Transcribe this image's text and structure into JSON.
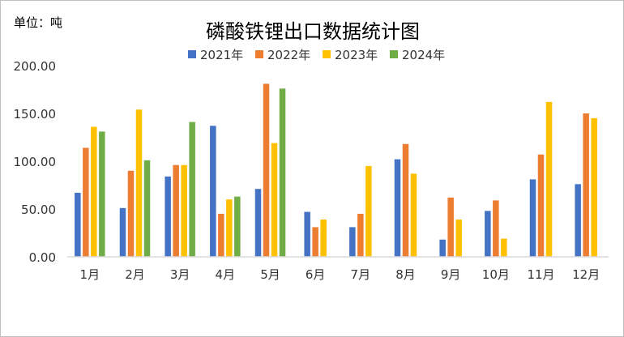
{
  "chart_data": {
    "type": "bar",
    "title": "磷酸铁锂出口数据统计图",
    "unit_label": "单位：吨",
    "categories": [
      "1月",
      "2月",
      "3月",
      "4月",
      "5月",
      "6月",
      "7月",
      "8月",
      "9月",
      "10月",
      "11月",
      "12月"
    ],
    "series": [
      {
        "name": "2021年",
        "color": "#4472C4",
        "values": [
          67,
          51,
          84,
          137,
          71,
          47,
          31,
          102,
          18,
          48,
          81,
          76
        ]
      },
      {
        "name": "2022年",
        "color": "#ED7D31",
        "values": [
          114,
          90,
          96,
          45,
          181,
          31,
          45,
          118,
          62,
          59,
          107,
          150
        ]
      },
      {
        "name": "2023年",
        "color": "#FFC000",
        "values": [
          136,
          154,
          96,
          60,
          119,
          39,
          95,
          87,
          39,
          19,
          162,
          145
        ]
      },
      {
        "name": "2024年",
        "color": "#70AD47",
        "values": [
          131,
          101,
          141,
          63,
          176,
          null,
          null,
          null,
          null,
          null,
          null,
          null
        ]
      }
    ],
    "ylim": [
      0,
      200
    ],
    "yticks": [
      "0.00",
      "50.00",
      "100.00",
      "150.00",
      "200.00"
    ],
    "grid": false,
    "legend": "top"
  }
}
